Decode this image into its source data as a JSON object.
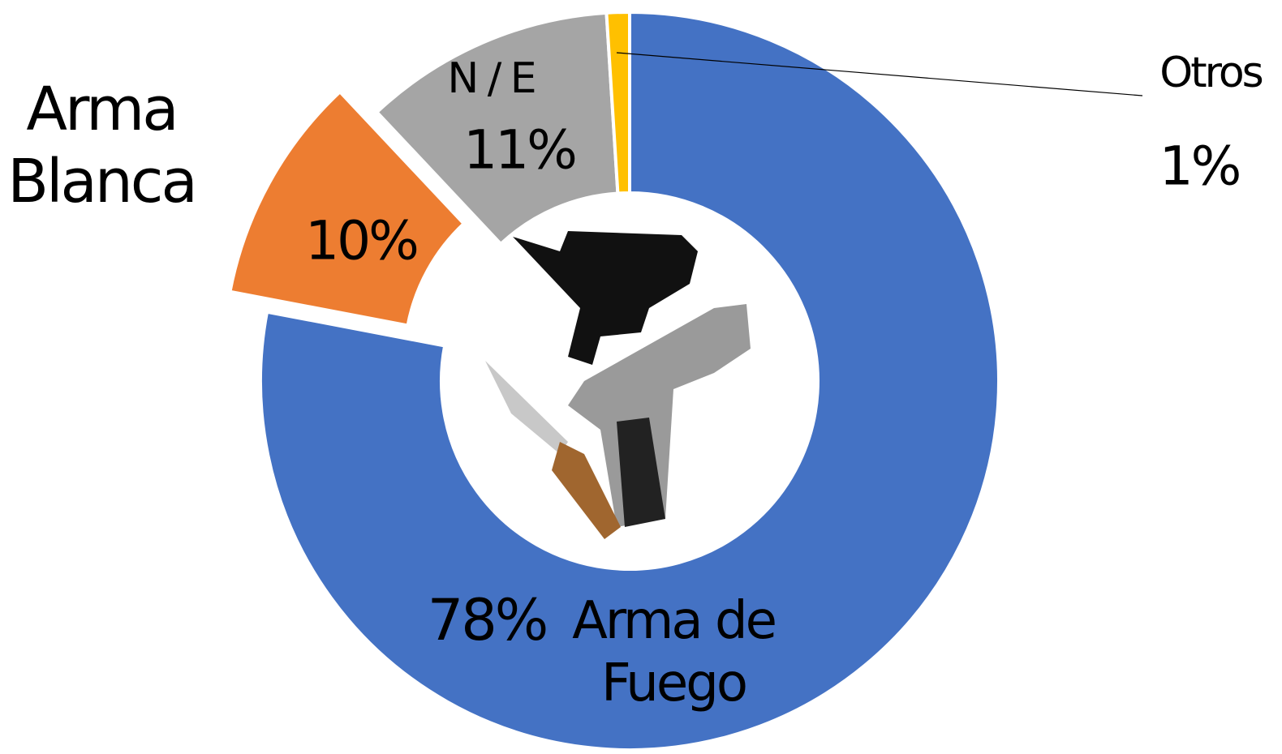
{
  "chart_data": {
    "type": "pie",
    "categories": [
      "Arma de Fuego",
      "Arma Blanca",
      "N / E",
      "Otros"
    ],
    "values": [
      78,
      10,
      11,
      1
    ],
    "value_labels": [
      "78%",
      "10%",
      "11%",
      "1%"
    ],
    "colors": [
      "#4472c4",
      "#ed7d31",
      "#a5a5a5",
      "#ffc000"
    ],
    "exploded": [
      false,
      true,
      false,
      false
    ]
  }
}
